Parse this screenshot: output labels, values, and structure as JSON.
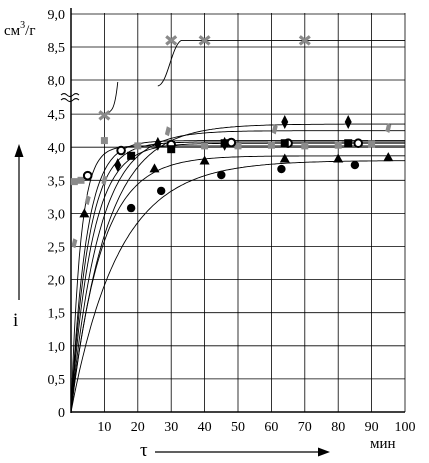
{
  "chart_data": {
    "type": "scatter",
    "title": "",
    "xlabel": "τ",
    "ylabel": "i",
    "x_unit": "мин",
    "y_unit": "см³/г",
    "y_unit_base": "см",
    "y_unit_exp": "3",
    "y_unit_tail": "/г",
    "xlim": [
      0,
      100
    ],
    "ylim": [
      0,
      9.0
    ],
    "y_axis_break": [
      4.5,
      8.0
    ],
    "x_ticks": [
      "10",
      "20",
      "30",
      "40",
      "50",
      "60",
      "70",
      "80",
      "90",
      "100"
    ],
    "y_ticks": [
      "0",
      "0,5",
      "1,0",
      "1,5",
      "2,0",
      "2,5",
      "3,0",
      "3,5",
      "4,0",
      "4,5",
      "8,0",
      "8,5",
      "9,0"
    ],
    "grid": true,
    "legend": "none",
    "series": [
      {
        "marker": "gray-square",
        "points": [
          [
            1,
            3.48
          ],
          [
            3,
            3.5
          ],
          [
            10,
            4.1
          ],
          [
            20,
            4.02
          ],
          [
            30,
            4.02
          ],
          [
            40,
            4.02
          ],
          [
            50,
            4.02
          ],
          [
            60,
            4.03
          ],
          [
            70,
            4.02
          ],
          [
            80,
            4.03
          ],
          [
            90,
            4.05
          ]
        ]
      },
      {
        "marker": "gray-diamond",
        "points": [
          [
            1,
            2.55
          ],
          [
            5,
            3.2
          ],
          [
            10,
            3.5
          ],
          [
            29,
            4.24
          ],
          [
            61,
            4.27
          ],
          [
            95,
            4.29
          ]
        ]
      },
      {
        "marker": "gray-cross",
        "points": [
          [
            10,
            4.48
          ],
          [
            30,
            8.6
          ],
          [
            40,
            8.6
          ],
          [
            70,
            8.6
          ]
        ]
      },
      {
        "marker": "open-circle",
        "points": [
          [
            5,
            3.57
          ],
          [
            15,
            3.95
          ],
          [
            30,
            4.04
          ],
          [
            48,
            4.07
          ],
          [
            65,
            4.06
          ],
          [
            86,
            4.06
          ]
        ]
      },
      {
        "marker": "filled-square",
        "points": [
          [
            18,
            3.87
          ],
          [
            30,
            3.97
          ],
          [
            46,
            4.06
          ],
          [
            64,
            4.06
          ],
          [
            83,
            4.06
          ]
        ]
      },
      {
        "marker": "filled-diamond",
        "points": [
          [
            14,
            3.73
          ],
          [
            26,
            4.05
          ],
          [
            46,
            4.05
          ],
          [
            64,
            4.38
          ],
          [
            83,
            4.38
          ]
        ]
      },
      {
        "marker": "filled-triangle",
        "points": [
          [
            4,
            3.0
          ],
          [
            25,
            3.68
          ],
          [
            40,
            3.8
          ],
          [
            64,
            3.83
          ],
          [
            80,
            3.83
          ],
          [
            95,
            3.85
          ]
        ]
      },
      {
        "marker": "filled-circle",
        "points": [
          [
            18,
            3.08
          ],
          [
            27,
            3.34
          ],
          [
            45,
            3.58
          ],
          [
            63,
            3.67
          ],
          [
            85,
            3.73
          ]
        ]
      }
    ],
    "curves": [
      {
        "asymptote": 4.35,
        "k": 0.095
      },
      {
        "asymptote": 4.25,
        "k": 0.12
      },
      {
        "asymptote": 4.1,
        "k": 0.22
      },
      {
        "asymptote": 4.08,
        "k": 0.19
      },
      {
        "asymptote": 4.06,
        "k": 0.16
      },
      {
        "asymptote": 4.02,
        "k": 0.35
      },
      {
        "asymptote": 3.87,
        "k": 0.11
      },
      {
        "asymptote": 3.8,
        "k": 0.07
      }
    ]
  }
}
